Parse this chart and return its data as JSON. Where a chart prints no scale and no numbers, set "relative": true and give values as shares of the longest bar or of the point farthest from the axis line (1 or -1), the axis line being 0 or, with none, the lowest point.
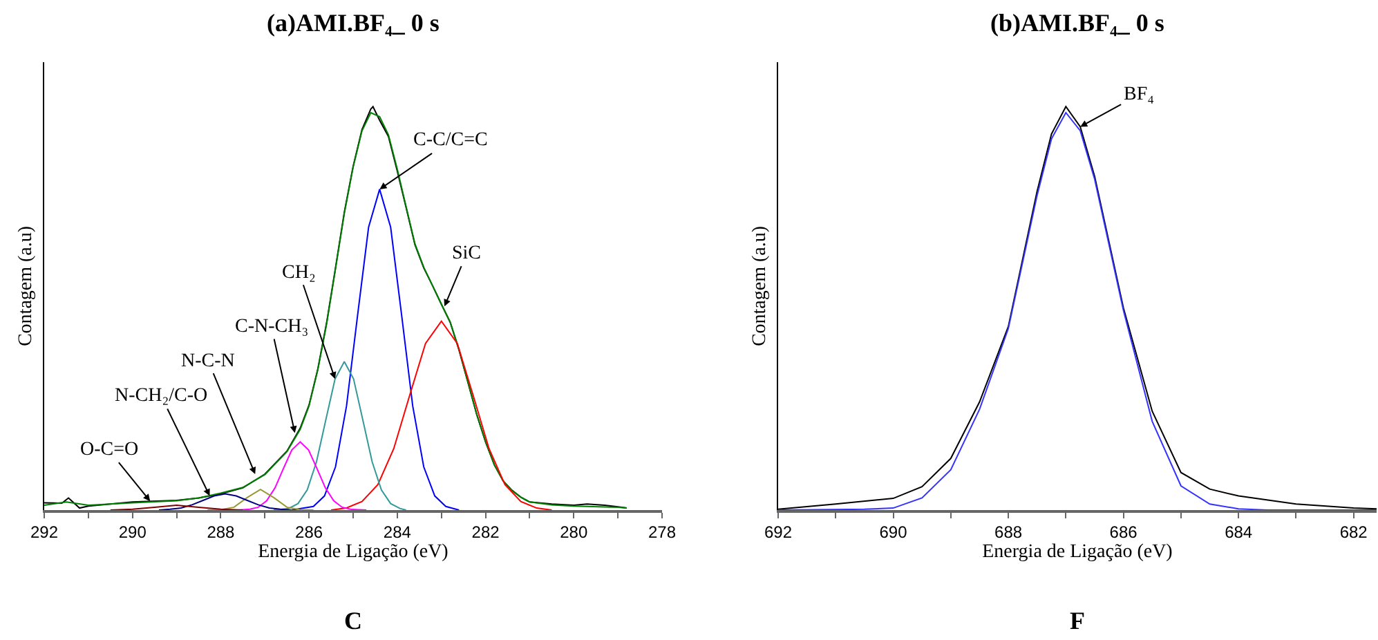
{
  "chart_data": [
    {
      "type": "line",
      "title": "(a)AMI.BF₄_ 0 s",
      "xlabel": "Energia de Ligação (eV)",
      "ylabel": "Contagem (a.u)",
      "relative": true,
      "xlim": [
        292,
        278
      ],
      "xticks": [
        292,
        {
          "value": 291,
          "label": null
        },
        290,
        {
          "value": 289,
          "label": null
        },
        288,
        {
          "value": 287,
          "label": null
        },
        286,
        {
          "value": 285,
          "label": null
        },
        284,
        {
          "value": 283,
          "label": null
        },
        282,
        {
          "value": 281,
          "label": null
        },
        280,
        {
          "value": 279,
          "label": null
        },
        278
      ],
      "annotations": [
        {
          "text": "O-C=O",
          "x": 289.6,
          "y": 0.022
        },
        {
          "text": "N-CH₂/C-O",
          "x": 288.25,
          "y": 0.035
        },
        {
          "text": "N-C-N",
          "x": 287.22,
          "y": 0.089
        },
        {
          "text": "C-N-CH₃",
          "x": 286.32,
          "y": 0.191
        },
        {
          "text": "CH₂",
          "x": 285.41,
          "y": 0.325
        },
        {
          "text": "C-C/C=C",
          "x": 284.4,
          "y": 0.795
        },
        {
          "text": "SiC",
          "x": 282.93,
          "y": 0.505
        },
        "C"
      ],
      "series": [
        {
          "color": "#000000",
          "x": [
            292,
            291.6,
            291.45,
            291.2,
            291,
            290,
            289,
            288.5,
            288,
            287.5,
            287,
            286.5,
            286.2,
            286,
            285.8,
            285.6,
            285.4,
            285.2,
            285,
            284.8,
            284.6,
            284.55,
            284.4,
            284.2,
            284,
            283.8,
            283.6,
            283.4,
            283.2,
            283,
            282.8,
            282.6,
            282.4,
            282.2,
            282,
            281.8,
            281.6,
            281.4,
            281.2,
            281,
            280.5,
            280,
            279.7,
            279.3,
            279,
            278.8
          ],
          "values": [
            0.018,
            0.017,
            0.03,
            0.005,
            0.01,
            0.02,
            0.024,
            0.03,
            0.04,
            0.055,
            0.089,
            0.146,
            0.203,
            0.26,
            0.35,
            0.465,
            0.6,
            0.738,
            0.852,
            0.943,
            0.994,
            1,
            0.966,
            0.926,
            0.84,
            0.75,
            0.658,
            0.6,
            0.556,
            0.51,
            0.465,
            0.396,
            0.317,
            0.237,
            0.169,
            0.112,
            0.072,
            0.049,
            0.032,
            0.02,
            0.015,
            0.012,
            0.015,
            0.012,
            0.008,
            0.005
          ]
        },
        {
          "color": "#008000",
          "x": [
            292,
            291.5,
            291,
            290,
            289,
            288.5,
            288,
            287.5,
            287,
            286.5,
            286.2,
            286,
            285.8,
            285.6,
            285.4,
            285.2,
            285,
            284.8,
            284.6,
            284.4,
            284.2,
            284,
            283.8,
            283.6,
            283.4,
            283.2,
            283,
            282.8,
            282.6,
            282.4,
            282.2,
            282,
            281.8,
            281.6,
            281.4,
            281.2,
            281,
            280.5,
            280,
            279,
            278.8
          ],
          "values": [
            0.012,
            0.02,
            0.012,
            0.018,
            0.023,
            0.03,
            0.042,
            0.056,
            0.088,
            0.145,
            0.2,
            0.258,
            0.348,
            0.462,
            0.598,
            0.735,
            0.85,
            0.94,
            0.985,
            0.975,
            0.93,
            0.845,
            0.752,
            0.66,
            0.602,
            0.556,
            0.51,
            0.466,
            0.398,
            0.318,
            0.238,
            0.17,
            0.112,
            0.072,
            0.048,
            0.032,
            0.02,
            0.013,
            0.01,
            0.007,
            0.005
          ]
        },
        {
          "color": "#0000ff",
          "x": [
            286.4,
            285.9,
            285.65,
            285.4,
            285.15,
            284.9,
            284.65,
            284.4,
            284.15,
            283.9,
            283.65,
            283.4,
            283.15,
            282.9,
            282.6
          ],
          "values": [
            0,
            0.009,
            0.035,
            0.107,
            0.258,
            0.482,
            0.701,
            0.795,
            0.701,
            0.482,
            0.258,
            0.107,
            0.035,
            0.009,
            0
          ]
        },
        {
          "color": "#ff0000",
          "x": [
            285.5,
            285.16,
            284.8,
            284.44,
            284.08,
            283.72,
            283.36,
            283,
            282.64,
            282.28,
            281.92,
            281.56,
            281.2,
            280.84,
            280.5
          ],
          "values": [
            0,
            0.005,
            0.021,
            0.063,
            0.152,
            0.284,
            0.413,
            0.468,
            0.413,
            0.284,
            0.152,
            0.063,
            0.021,
            0.005,
            0
          ]
        },
        {
          "color": "#339999",
          "x": [
            286.8,
            286.46,
            286.25,
            286.04,
            285.83,
            285.62,
            285.41,
            285.2,
            284.99,
            284.78,
            284.57,
            284.36,
            284.15,
            283.94,
            283.8
          ],
          "values": [
            0,
            0.004,
            0.016,
            0.05,
            0.12,
            0.223,
            0.325,
            0.368,
            0.325,
            0.223,
            0.12,
            0.05,
            0.016,
            0.004,
            0
          ]
        },
        {
          "color": "#ff00ff",
          "x": [
            287.6,
            287.34,
            287.15,
            286.96,
            286.77,
            286.58,
            286.39,
            286.2,
            286.01,
            285.82,
            285.63,
            285.44,
            285.25,
            285.06,
            284.7
          ],
          "values": [
            0,
            0.002,
            0.007,
            0.023,
            0.055,
            0.103,
            0.149,
            0.169,
            0.149,
            0.103,
            0.055,
            0.023,
            0.007,
            0.002,
            0
          ]
        },
        {
          "color": "#999933",
          "x": [
            288.3,
            288,
            287.7,
            287.4,
            287.1,
            286.8,
            286.5,
            286.2,
            285.9
          ],
          "values": [
            0,
            0.001,
            0.007,
            0.031,
            0.051,
            0.031,
            0.007,
            0.001,
            0
          ]
        },
        {
          "color": "#000080",
          "x": [
            289.4,
            289.15,
            288.9,
            288.65,
            288.4,
            288.15,
            287.9,
            287.65,
            287.4,
            287.15,
            286.9,
            286.65,
            286.4
          ],
          "values": [
            0,
            0.002,
            0.005,
            0.013,
            0.024,
            0.035,
            0.04,
            0.035,
            0.024,
            0.013,
            0.005,
            0.002,
            0
          ]
        },
        {
          "color": "#800000",
          "x": [
            290.5,
            290,
            289.5,
            289,
            288.5,
            288,
            287.5
          ],
          "values": [
            0,
            0.002,
            0.007,
            0.012,
            0.007,
            0.002,
            0
          ]
        }
      ]
    },
    {
      "type": "line",
      "title": "(b)AMI.BF₄_ 0 s",
      "xlabel": "Energia de Ligação (eV)",
      "ylabel": "Contagem (a.u)",
      "relative": true,
      "xlim": [
        692,
        681.6
      ],
      "xticks": [
        692,
        {
          "value": 691,
          "label": null
        },
        690,
        {
          "value": 689,
          "label": null
        },
        688,
        {
          "value": 687,
          "label": null
        },
        686,
        {
          "value": 685,
          "label": null
        },
        684,
        {
          "value": 683,
          "label": null
        },
        682
      ],
      "annotations": [
        {
          "text": "BF₄",
          "x": 686.75,
          "y": 0.95
        },
        "F"
      ],
      "series": [
        {
          "color": "#000000",
          "x": [
            692,
            691,
            690,
            689.5,
            689,
            688.5,
            688,
            687.5,
            687.25,
            687,
            686.75,
            686.5,
            686,
            685.5,
            685,
            684.5,
            684,
            683,
            682,
            681.6
          ],
          "values": [
            0.002,
            0.015,
            0.029,
            0.058,
            0.128,
            0.268,
            0.455,
            0.79,
            0.932,
            1,
            0.95,
            0.827,
            0.501,
            0.245,
            0.093,
            0.052,
            0.035,
            0.015,
            0.005,
            0.003
          ]
        },
        {
          "color": "#3333ff",
          "x": [
            692,
            690.5,
            690,
            689.5,
            689,
            688.5,
            688,
            687.5,
            687.25,
            687,
            686.75,
            686.5,
            686,
            685.5,
            685,
            684.5,
            684,
            683.5,
            681.6
          ],
          "values": [
            0,
            0.002,
            0.005,
            0.03,
            0.1,
            0.25,
            0.45,
            0.78,
            0.92,
            0.985,
            0.94,
            0.82,
            0.495,
            0.22,
            0.06,
            0.015,
            0.003,
            0,
            0
          ]
        }
      ]
    }
  ]
}
